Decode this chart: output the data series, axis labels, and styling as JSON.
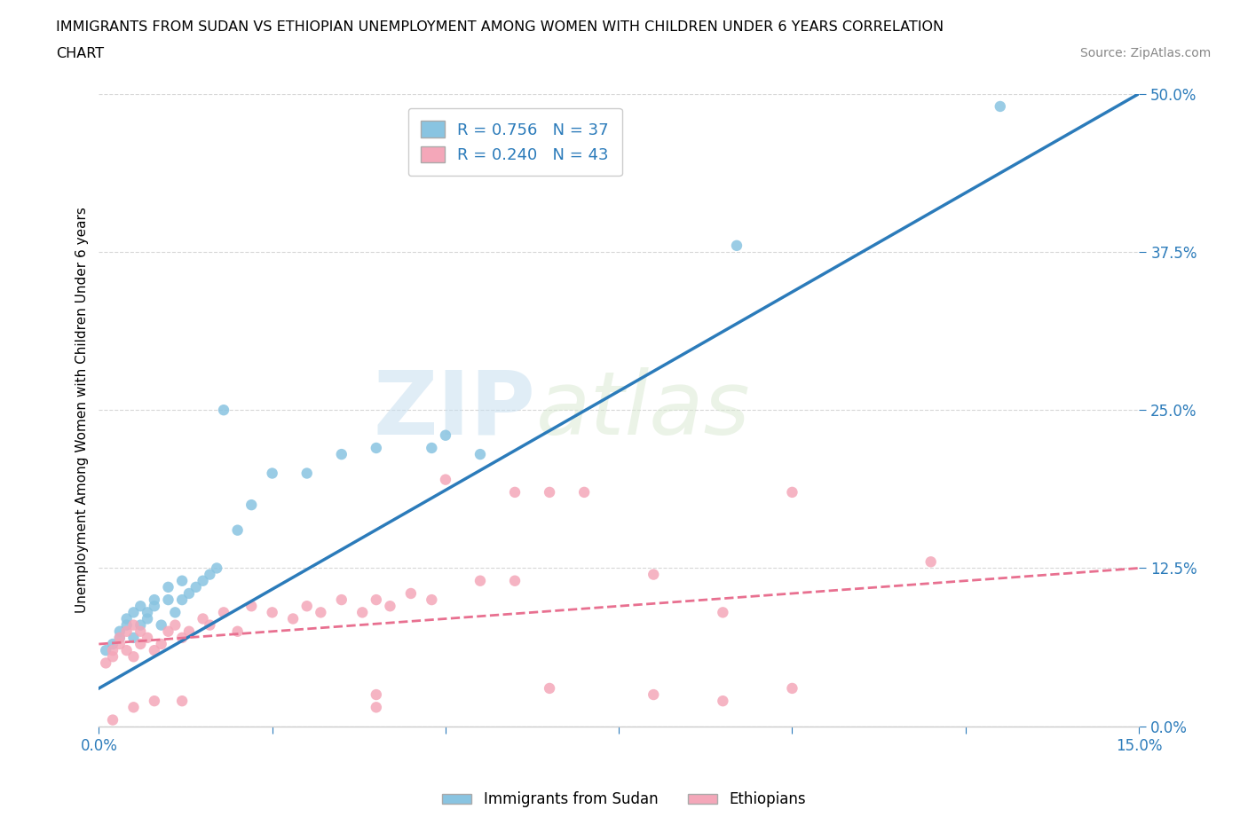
{
  "title_line1": "IMMIGRANTS FROM SUDAN VS ETHIOPIAN UNEMPLOYMENT AMONG WOMEN WITH CHILDREN UNDER 6 YEARS CORRELATION",
  "title_line2": "CHART",
  "source": "Source: ZipAtlas.com",
  "ylabel_label": "Unemployment Among Women with Children Under 6 years",
  "legend_entry1_r": "0.756",
  "legend_entry1_n": "37",
  "legend_entry2_r": "0.240",
  "legend_entry2_n": "43",
  "color_sudan": "#89c4e1",
  "color_ethiopia": "#f4a7b9",
  "color_sudan_line": "#2b7bba",
  "color_ethiopia_line": "#e87090",
  "watermark_zip": "ZIP",
  "watermark_atlas": "atlas",
  "sudan_scatter_x": [
    0.001,
    0.002,
    0.003,
    0.003,
    0.004,
    0.004,
    0.005,
    0.005,
    0.006,
    0.006,
    0.007,
    0.007,
    0.008,
    0.008,
    0.009,
    0.01,
    0.01,
    0.011,
    0.012,
    0.012,
    0.013,
    0.014,
    0.015,
    0.016,
    0.017,
    0.02,
    0.022,
    0.025,
    0.03,
    0.035,
    0.04,
    0.048,
    0.05,
    0.055,
    0.018,
    0.092,
    0.13
  ],
  "sudan_scatter_y": [
    0.06,
    0.065,
    0.07,
    0.075,
    0.08,
    0.085,
    0.07,
    0.09,
    0.08,
    0.095,
    0.085,
    0.09,
    0.095,
    0.1,
    0.08,
    0.1,
    0.11,
    0.09,
    0.1,
    0.115,
    0.105,
    0.11,
    0.115,
    0.12,
    0.125,
    0.155,
    0.175,
    0.2,
    0.2,
    0.215,
    0.22,
    0.22,
    0.23,
    0.215,
    0.25,
    0.38,
    0.49
  ],
  "ethiopia_scatter_x": [
    0.001,
    0.002,
    0.002,
    0.003,
    0.003,
    0.004,
    0.004,
    0.005,
    0.005,
    0.006,
    0.006,
    0.007,
    0.008,
    0.009,
    0.01,
    0.011,
    0.012,
    0.013,
    0.015,
    0.016,
    0.018,
    0.02,
    0.022,
    0.025,
    0.028,
    0.03,
    0.032,
    0.035,
    0.038,
    0.04,
    0.042,
    0.045,
    0.048,
    0.05,
    0.055,
    0.06,
    0.06,
    0.065,
    0.07,
    0.08,
    0.09,
    0.1,
    0.12
  ],
  "ethiopia_scatter_y": [
    0.05,
    0.06,
    0.055,
    0.065,
    0.07,
    0.06,
    0.075,
    0.055,
    0.08,
    0.065,
    0.075,
    0.07,
    0.06,
    0.065,
    0.075,
    0.08,
    0.07,
    0.075,
    0.085,
    0.08,
    0.09,
    0.075,
    0.095,
    0.09,
    0.085,
    0.095,
    0.09,
    0.1,
    0.09,
    0.1,
    0.095,
    0.105,
    0.1,
    0.195,
    0.115,
    0.115,
    0.185,
    0.185,
    0.185,
    0.12,
    0.09,
    0.185,
    0.13
  ],
  "ethiopia_low_x": [
    0.002,
    0.005,
    0.008,
    0.012,
    0.04,
    0.04,
    0.065,
    0.08,
    0.09,
    0.1
  ],
  "ethiopia_low_y": [
    0.005,
    0.015,
    0.02,
    0.02,
    0.015,
    0.025,
    0.03,
    0.025,
    0.02,
    0.03
  ],
  "xlim": [
    0.0,
    0.15
  ],
  "ylim": [
    0.0,
    0.5
  ],
  "x_ticks": [
    0.0,
    0.15
  ],
  "y_ticks": [
    0.0,
    0.125,
    0.25,
    0.375,
    0.5
  ],
  "y_tick_labels": [
    "0.0%",
    "12.5%",
    "25.0%",
    "37.5%",
    "50.0%"
  ]
}
